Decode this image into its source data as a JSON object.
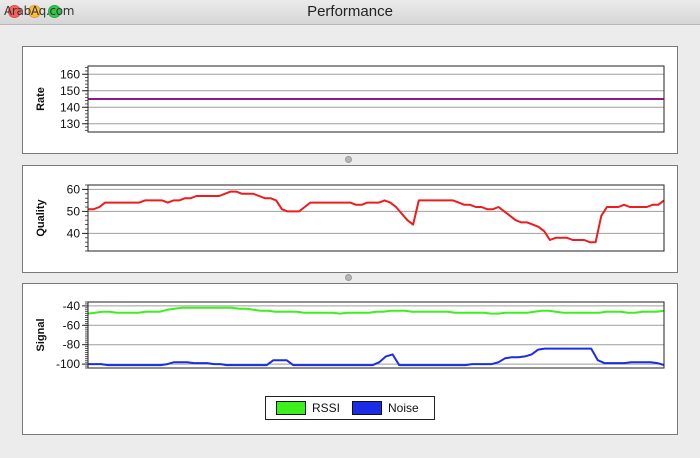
{
  "window": {
    "title": "Performance",
    "watermark": "ArabAq.com"
  },
  "charts": {
    "rate": {
      "ylabel": "Rate",
      "yticks": [
        "160",
        "150",
        "140",
        "130"
      ],
      "ylim": [
        125,
        165
      ]
    },
    "quality": {
      "ylabel": "Quality",
      "yticks": [
        "60",
        "50",
        "40"
      ],
      "ylim": [
        32,
        62
      ]
    },
    "signal": {
      "ylabel": "Signal",
      "yticks": [
        "-40",
        "-60",
        "-80",
        "-100"
      ],
      "ylim": [
        -104,
        -36
      ]
    }
  },
  "legend": {
    "rssi_label": "RSSI",
    "noise_label": "Noise"
  },
  "colors": {
    "rate": "#8b1a8b",
    "quality": "#ee1c1c",
    "rssi": "#3cf01c",
    "noise": "#1a2ce6"
  },
  "chart_data": [
    {
      "type": "line",
      "title": "",
      "ylabel": "Rate",
      "ylim": [
        125,
        165
      ],
      "grid": true,
      "series": [
        {
          "values": [
            145,
            145,
            145,
            145,
            145,
            145,
            145,
            145,
            145,
            145,
            145,
            145,
            145,
            145,
            145,
            145,
            145,
            145,
            145,
            145,
            145,
            145,
            145,
            145,
            145,
            145,
            145,
            145,
            145,
            145,
            145,
            145,
            145,
            145,
            145,
            145,
            145,
            145,
            145,
            145,
            145,
            145,
            145,
            145,
            145,
            145,
            145,
            145,
            145,
            145,
            145,
            145,
            145,
            145,
            145,
            145,
            145,
            145,
            145,
            145,
            145,
            145,
            145,
            145,
            145,
            145,
            145,
            145,
            145,
            145,
            145,
            145,
            145,
            145,
            145,
            145,
            145,
            145,
            145,
            145,
            145,
            145,
            145,
            145,
            145,
            145,
            145,
            145,
            145,
            145,
            145,
            145,
            145,
            145,
            145,
            145
          ]
        }
      ]
    },
    {
      "type": "line",
      "title": "",
      "ylabel": "Quality",
      "ylim": [
        32,
        62
      ],
      "grid": true,
      "series": [
        {
          "values": [
            51,
            51,
            52,
            54,
            54,
            54,
            54,
            54,
            54,
            54,
            55,
            55,
            55,
            55,
            54,
            55,
            55,
            56,
            56,
            57,
            57,
            57,
            57,
            57,
            58,
            59,
            59,
            58,
            58,
            58,
            57,
            56,
            56,
            55,
            51,
            50,
            50,
            50,
            52,
            54,
            54,
            54,
            54,
            54,
            54,
            54,
            54,
            53,
            53,
            54,
            54,
            54,
            55,
            54,
            52,
            49,
            46,
            44,
            55,
            55,
            55,
            55,
            55,
            55,
            55,
            54,
            53,
            53,
            52,
            52,
            51,
            51,
            52,
            50,
            48,
            46,
            45,
            45,
            44,
            43,
            41,
            37,
            38,
            38,
            38,
            37,
            37,
            37,
            36,
            36,
            48,
            52,
            52,
            52,
            53,
            52,
            52,
            52,
            52,
            53,
            53,
            55
          ]
        }
      ]
    },
    {
      "type": "line",
      "title": "",
      "ylabel": "Signal",
      "ylim": [
        -104,
        -36
      ],
      "grid": true,
      "series": [
        {
          "name": "RSSI",
          "values": [
            -48,
            -47,
            -46,
            -46,
            -47,
            -47,
            -47,
            -47,
            -46,
            -46,
            -46,
            -44,
            -43,
            -42,
            -42,
            -42,
            -42,
            -42,
            -42,
            -42,
            -42,
            -43,
            -43,
            -44,
            -45,
            -45,
            -46,
            -46,
            -46,
            -46,
            -47,
            -47,
            -47,
            -47,
            -47,
            -48,
            -47,
            -47,
            -47,
            -47,
            -46,
            -46,
            -45,
            -45,
            -45,
            -46,
            -46,
            -46,
            -46,
            -46,
            -46,
            -47,
            -47,
            -47,
            -47,
            -47,
            -48,
            -48,
            -47,
            -47,
            -47,
            -47,
            -46,
            -45,
            -45,
            -46,
            -47,
            -47,
            -47,
            -47,
            -47,
            -47,
            -46,
            -46,
            -46,
            -47,
            -47,
            -46,
            -46,
            -46,
            -45
          ]
        },
        {
          "name": "Noise",
          "values": [
            -100,
            -100,
            -100,
            -101,
            -101,
            -101,
            -101,
            -101,
            -101,
            -101,
            -101,
            -101,
            -100,
            -98,
            -98,
            -98,
            -99,
            -99,
            -99,
            -100,
            -100,
            -101,
            -101,
            -101,
            -101,
            -101,
            -101,
            -101,
            -96,
            -96,
            -96,
            -101,
            -101,
            -101,
            -101,
            -101,
            -101,
            -101,
            -101,
            -101,
            -101,
            -101,
            -101,
            -101,
            -98,
            -92,
            -90,
            -101,
            -101,
            -101,
            -101,
            -101,
            -101,
            -101,
            -101,
            -101,
            -101,
            -101,
            -100,
            -100,
            -100,
            -100,
            -98,
            -94,
            -93,
            -93,
            -92,
            -90,
            -85,
            -84,
            -84,
            -84,
            -84,
            -84,
            -84,
            -84,
            -84,
            -96,
            -99,
            -99,
            -99,
            -99,
            -98,
            -98,
            -98,
            -98,
            -99,
            -101
          ]
        }
      ]
    }
  ]
}
